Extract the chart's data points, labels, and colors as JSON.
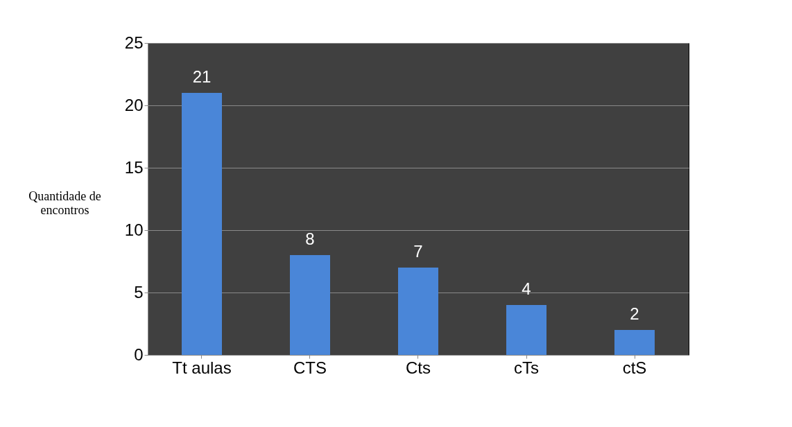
{
  "chart_data": {
    "type": "bar",
    "ylabel": "Quantidade de encontros",
    "categories": [
      "Tt aulas",
      "CTS",
      "Cts",
      "cTs",
      "ctS"
    ],
    "values": [
      21,
      8,
      7,
      4,
      2
    ],
    "color": "#4a86d8",
    "ylim": [
      0,
      25
    ],
    "yticks": [
      0,
      5,
      10,
      15,
      20,
      25
    ],
    "grid": "y",
    "data_labels": true
  }
}
